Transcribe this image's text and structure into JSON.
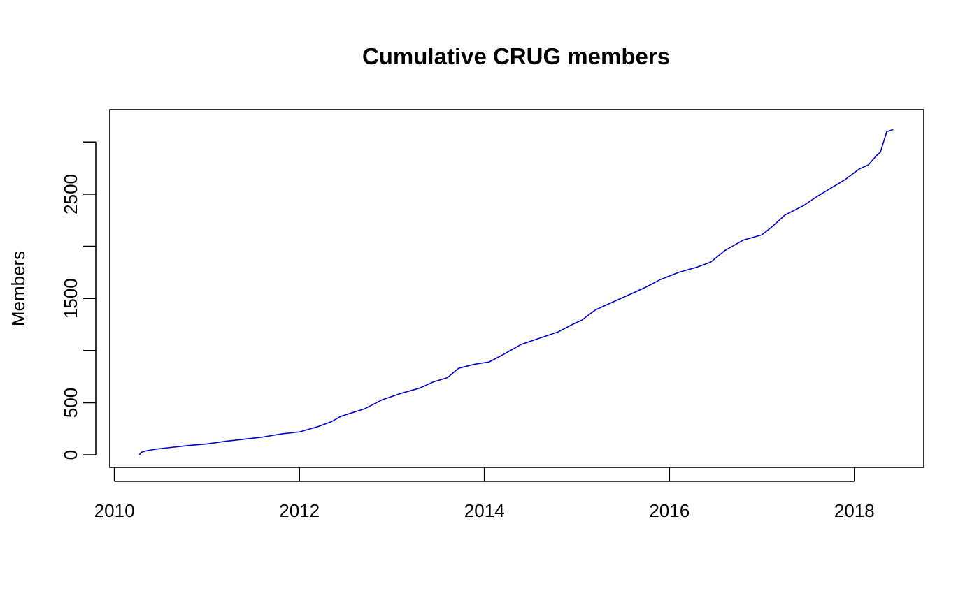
{
  "chart_data": {
    "type": "line",
    "title": "Cumulative CRUG members",
    "xlabel": "",
    "ylabel": "Members",
    "xlim": [
      2009.95,
      2018.75
    ],
    "ylim": [
      -120,
      3310
    ],
    "x_ticks": [
      2010,
      2012,
      2014,
      2016,
      2018
    ],
    "x_tick_labels": [
      "2010",
      "2012",
      "2014",
      "2016",
      "2018"
    ],
    "y_ticks": [
      0,
      500,
      1000,
      1500,
      2000,
      2500,
      3000
    ],
    "y_tick_labels": [
      "0",
      "500",
      "",
      "1500",
      "",
      "2500",
      ""
    ],
    "grid": false,
    "legend": null,
    "colors": {
      "series": "#0000CD",
      "axis": "#000000"
    },
    "series": [
      {
        "color": "#0000CD",
        "x": [
          2010.27,
          2010.29,
          2010.35,
          2010.45,
          2010.6,
          2010.8,
          2011.0,
          2011.2,
          2011.4,
          2011.6,
          2011.8,
          2012.0,
          2012.2,
          2012.35,
          2012.45,
          2012.7,
          2012.9,
          2013.1,
          2013.3,
          2013.45,
          2013.6,
          2013.72,
          2013.9,
          2014.05,
          2014.2,
          2014.4,
          2014.6,
          2014.8,
          2014.95,
          2015.05,
          2015.2,
          2015.4,
          2015.6,
          2015.75,
          2015.9,
          2016.1,
          2016.3,
          2016.45,
          2016.6,
          2016.8,
          2017.0,
          2017.1,
          2017.25,
          2017.45,
          2017.6,
          2017.75,
          2017.9,
          2018.05,
          2018.15,
          2018.25,
          2018.28,
          2018.35,
          2018.42
        ],
        "values": [
          0,
          25,
          40,
          55,
          70,
          90,
          105,
          130,
          150,
          170,
          200,
          220,
          270,
          320,
          370,
          440,
          530,
          590,
          640,
          700,
          740,
          830,
          870,
          890,
          960,
          1060,
          1120,
          1180,
          1250,
          1290,
          1390,
          1470,
          1550,
          1610,
          1680,
          1750,
          1800,
          1850,
          1960,
          2060,
          2110,
          2180,
          2300,
          2390,
          2480,
          2560,
          2640,
          2740,
          2780,
          2880,
          2900,
          3100,
          3120
        ]
      }
    ]
  }
}
